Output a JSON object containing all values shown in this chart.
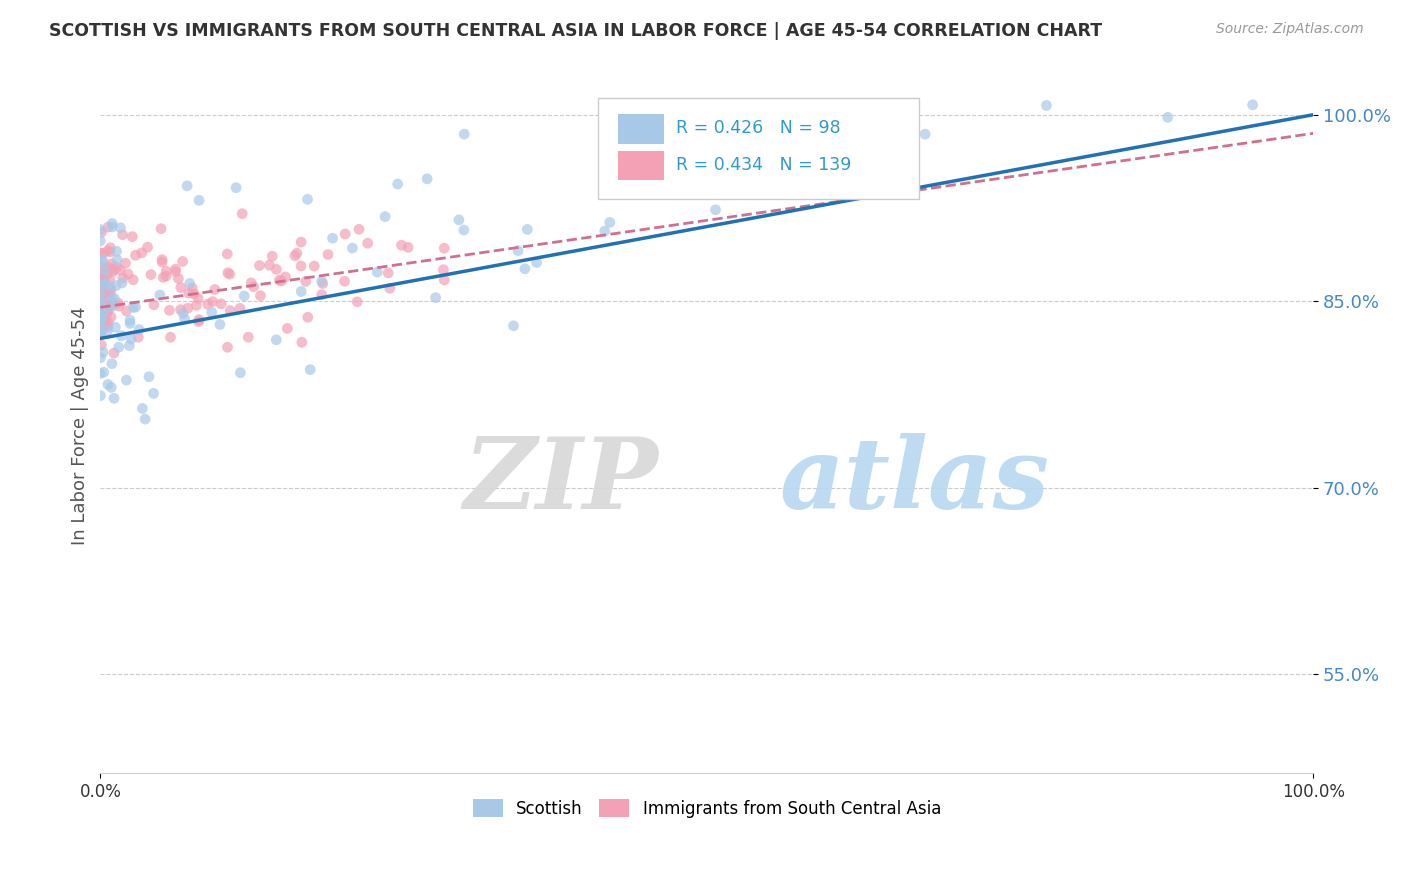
{
  "title": "SCOTTISH VS IMMIGRANTS FROM SOUTH CENTRAL ASIA IN LABOR FORCE | AGE 45-54 CORRELATION CHART",
  "source_text": "Source: ZipAtlas.com",
  "ylabel": "In Labor Force | Age 45-54",
  "xlim": [
    0.0,
    1.0
  ],
  "ylim": [
    0.47,
    1.03
  ],
  "x_tick_labels": [
    "0.0%",
    "100.0%"
  ],
  "y_tick_labels": [
    "55.0%",
    "70.0%",
    "85.0%",
    "100.0%"
  ],
  "y_tick_values": [
    0.55,
    0.7,
    0.85,
    1.0
  ],
  "r_scottish": 0.426,
  "n_scottish": 98,
  "r_immigrants": 0.434,
  "n_immigrants": 139,
  "legend_label_1": "Scottish",
  "legend_label_2": "Immigrants from South Central Asia",
  "color_scottish": "#a8c8e8",
  "color_immigrants": "#f4a0b5",
  "color_line_scottish": "#2171b5",
  "color_line_immigrants": "#d07090",
  "watermark_zip": "ZIP",
  "watermark_atlas": "atlas",
  "background_color": "#ffffff"
}
